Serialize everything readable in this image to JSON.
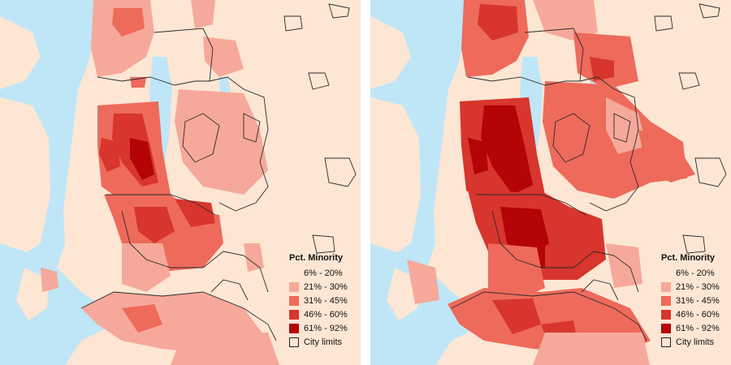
{
  "maps": [
    {
      "legend": {
        "title": "Pct. Minority",
        "classes": [
          {
            "label": "6% - 20%",
            "color": "#fde6d4",
            "swatch": false
          },
          {
            "label": "21% - 30%",
            "color": "#f6a99a"
          },
          {
            "label": "31% - 45%",
            "color": "#ee6a5b"
          },
          {
            "label": "46% - 60%",
            "color": "#d7352d"
          },
          {
            "label": "61% - 92%",
            "color": "#b40407"
          }
        ],
        "city_limits_label": "City limits"
      }
    },
    {
      "legend": {
        "title": "Pct. Minority",
        "classes": [
          {
            "label": "6% - 20%",
            "color": "#fde6d4",
            "swatch": false
          },
          {
            "label": "21% - 30%",
            "color": "#f6a99a"
          },
          {
            "label": "31% - 45%",
            "color": "#ee6a5b"
          },
          {
            "label": "46% - 60%",
            "color": "#d7352d"
          },
          {
            "label": "61% - 92%",
            "color": "#b40407"
          }
        ],
        "city_limits_label": "City limits"
      }
    }
  ],
  "colors": {
    "water": "#bfe6f7",
    "land_base": "#fde6d4",
    "city_border": "#2b2b2b"
  }
}
